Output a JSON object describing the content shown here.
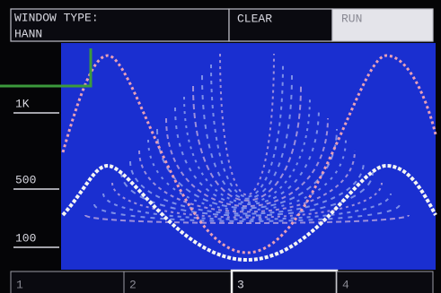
{
  "header": {
    "window_type_label": "WINDOW TYPE:",
    "window_type": "HANN",
    "clear": "CLEAR",
    "run": "RUN"
  },
  "axis_labels": [
    "1K",
    "500",
    "100"
  ],
  "tabs": [
    "1",
    "2",
    "3",
    "4"
  ]
}
